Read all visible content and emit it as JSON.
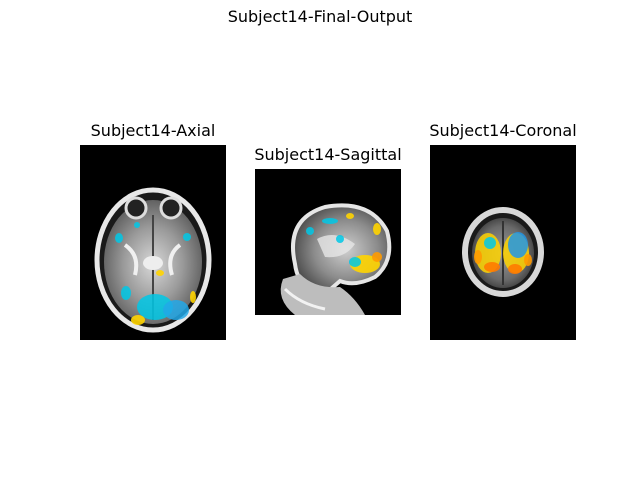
{
  "figure": {
    "title": "Subject14-Final-Output"
  },
  "panels": [
    {
      "title": "Subject14-Axial",
      "view": "axial",
      "overlay_colors": [
        "#00c8e6",
        "#ffd400",
        "#ff7a00"
      ]
    },
    {
      "title": "Subject14-Sagittal",
      "view": "sagittal",
      "overlay_colors": [
        "#00c8e6",
        "#ffd400",
        "#ff7a00"
      ]
    },
    {
      "title": "Subject14-Coronal",
      "view": "coronal",
      "overlay_colors": [
        "#00c8e6",
        "#ffd400",
        "#ff7a00"
      ]
    }
  ]
}
